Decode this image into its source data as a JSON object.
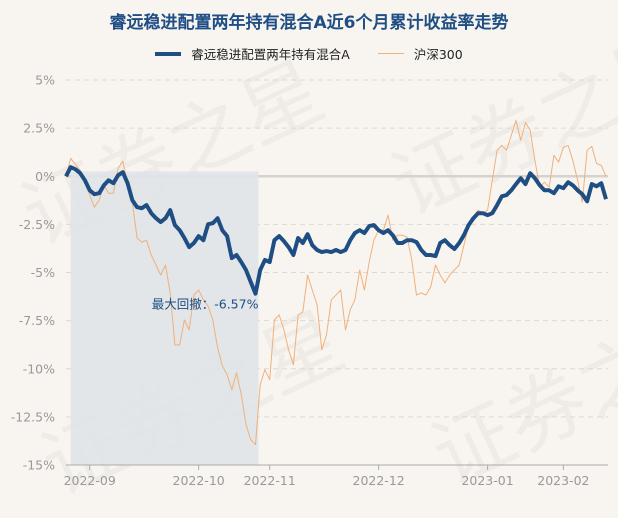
{
  "watermark": "证券之星",
  "chart_data": {
    "type": "line",
    "title": "睿远稳进配置两年持有混合A近6个月累计收益率走势",
    "xlabel": "",
    "ylabel": "",
    "ylim": [
      -15,
      5
    ],
    "yticks": [
      5,
      2.5,
      0,
      -2.5,
      -5,
      -7.5,
      -10,
      -12.5,
      -15
    ],
    "ytick_labels": [
      "5%",
      "2.5%",
      "0%",
      "-2.5%",
      "-5%",
      "-7.5%",
      "-10%",
      "-12.5%",
      "-15%"
    ],
    "xticks": [
      {
        "index": 5,
        "label": "2022-09"
      },
      {
        "index": 28,
        "label": "2022-10"
      },
      {
        "index": 43,
        "label": "2022-11"
      },
      {
        "index": 66,
        "label": "2022-12"
      },
      {
        "index": 89,
        "label": "2023-01"
      },
      {
        "index": 105,
        "label": "2023-02"
      }
    ],
    "grid": true,
    "legend_position": "top-center",
    "series": [
      {
        "name": "睿远稳进配置两年持有混合A",
        "color": "#1f4e84",
        "values": [
          0,
          0.47,
          0.36,
          0.16,
          -0.21,
          -0.73,
          -0.93,
          -0.88,
          -0.47,
          -0.21,
          -0.36,
          0.05,
          0.21,
          -0.36,
          -1.24,
          -1.61,
          -1.66,
          -1.5,
          -1.92,
          -2.18,
          -2.38,
          -2.18,
          -1.76,
          -2.54,
          -2.8,
          -3.21,
          -3.68,
          -3.47,
          -3.11,
          -3.32,
          -2.49,
          -2.44,
          -2.18,
          -2.8,
          -3.11,
          -4.25,
          -4.09,
          -4.46,
          -4.87,
          -5.49,
          -6.1,
          -4.87,
          -4.35,
          -4.46,
          -3.32,
          -3.11,
          -3.37,
          -3.68,
          -4.09,
          -3.21,
          -3.47,
          -3.01,
          -3.58,
          -3.83,
          -3.94,
          -3.89,
          -3.94,
          -3.83,
          -3.94,
          -3.83,
          -3.32,
          -2.95,
          -2.8,
          -2.95,
          -2.59,
          -2.54,
          -2.8,
          -2.95,
          -2.8,
          -3.06,
          -3.47,
          -3.47,
          -3.32,
          -3.32,
          -3.42,
          -3.83,
          -4.09,
          -4.09,
          -4.15,
          -3.47,
          -3.32,
          -3.58,
          -3.78,
          -3.47,
          -3.06,
          -2.54,
          -2.18,
          -1.92,
          -1.92,
          -2.02,
          -1.92,
          -1.5,
          -1.04,
          -0.98,
          -0.73,
          -0.41,
          -0.1,
          -0.41,
          0.16,
          -0.1,
          -0.47,
          -0.73,
          -0.73,
          -0.88,
          -0.52,
          -0.62,
          -0.31,
          -0.47,
          -0.73,
          -0.93,
          -1.3,
          -0.41,
          -0.52,
          -0.36,
          -1.19
        ]
      },
      {
        "name": "沪深300",
        "color": "#f0b07a",
        "values": [
          0,
          0.93,
          0.62,
          0.31,
          -0.21,
          -0.98,
          -1.61,
          -1.24,
          -0.47,
          -0.88,
          -0.88,
          0.41,
          0.78,
          -0.36,
          -1.35,
          -3.21,
          -3.42,
          -3.32,
          -4.09,
          -4.61,
          -5.13,
          -4.61,
          -6.06,
          -8.76,
          -8.76,
          -7.46,
          -7.98,
          -6.17,
          -5.91,
          -6.42,
          -6.74,
          -7.46,
          -8.91,
          -9.84,
          -10.31,
          -11.09,
          -10.21,
          -11.35,
          -12.9,
          -13.68,
          -13.94,
          -10.83,
          -10.05,
          -10.57,
          -7.46,
          -7.2,
          -7.98,
          -9.02,
          -9.79,
          -7.2,
          -7.05,
          -5.13,
          -5.91,
          -6.68,
          -9.02,
          -8.24,
          -6.42,
          -6.17,
          -5.91,
          -7.98,
          -6.94,
          -6.42,
          -4.87,
          -5.91,
          -4.46,
          -3.32,
          -2.8,
          -2.8,
          -2.02,
          -3.32,
          -3.06,
          -3.06,
          -3.16,
          -4.35,
          -6.17,
          -6.06,
          -6.17,
          -5.75,
          -4.61,
          -5.13,
          -5.54,
          -5.13,
          -4.87,
          -4.61,
          -3.58,
          -2.54,
          -2.12,
          -1.76,
          -1.92,
          -1.76,
          -0.21,
          1.35,
          1.61,
          1.35,
          2.12,
          2.9,
          1.87,
          2.8,
          2.38,
          0.83,
          -0.57,
          -0.31,
          -0.57,
          1.09,
          0.73,
          1.5,
          1.61,
          0.83,
          -0.21,
          -1.35,
          1.35,
          1.55,
          0.67,
          0.57,
          0
        ]
      }
    ],
    "max_drawdown": {
      "label": "最大回撤：-6.57%",
      "value": -6.57,
      "start_index": 1,
      "end_index": 40
    }
  }
}
